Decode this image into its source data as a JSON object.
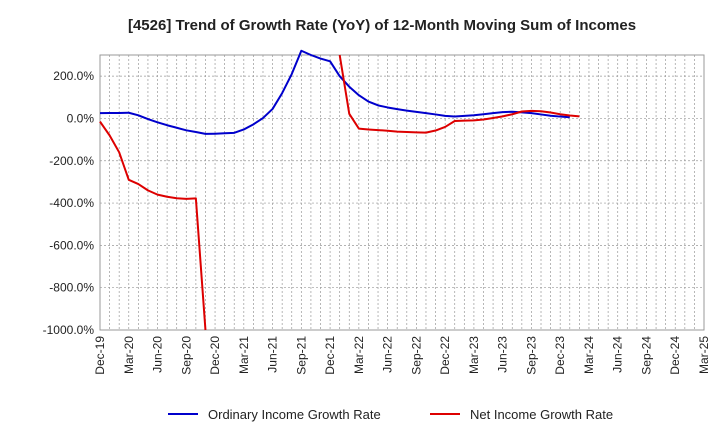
{
  "chart_data": {
    "type": "line",
    "title": "[4526]  Trend of Growth Rate (YoY) of 12-Month Moving Sum of Incomes",
    "xlabel": "",
    "ylabel": "",
    "x_tick_labels": [
      "Dec-19",
      "Mar-20",
      "Jun-20",
      "Sep-20",
      "Dec-20",
      "Mar-21",
      "Jun-21",
      "Sep-21",
      "Dec-21",
      "Mar-22",
      "Jun-22",
      "Sep-22",
      "Dec-22",
      "Mar-23",
      "Jun-23",
      "Sep-23",
      "Dec-23",
      "Mar-24",
      "Jun-24",
      "Sep-24",
      "Dec-24",
      "Mar-25"
    ],
    "y_tick_labels": [
      "200.0%",
      "0.0%",
      "-200.0%",
      "-400.0%",
      "-600.0%",
      "-800.0%",
      "-1000.0%"
    ],
    "y_ticks": [
      200,
      0,
      -200,
      -400,
      -600,
      -800,
      -1000
    ],
    "ylim": [
      -1000,
      300
    ],
    "grid": true,
    "legend_position": "bottom",
    "series": [
      {
        "name": "Ordinary Income Growth Rate",
        "color": "#0000cc",
        "values": [
          [
            0,
            25
          ],
          [
            1,
            26
          ],
          [
            2,
            26
          ],
          [
            3,
            27
          ],
          [
            4,
            15
          ],
          [
            5,
            -3
          ],
          [
            6,
            -18
          ],
          [
            7,
            -32
          ],
          [
            8,
            -44
          ],
          [
            9,
            -56
          ],
          [
            10,
            -64
          ],
          [
            11,
            -73
          ],
          [
            12,
            -72
          ],
          [
            13,
            -70
          ],
          [
            14,
            -68
          ],
          [
            15,
            -52
          ],
          [
            16,
            -28
          ],
          [
            17,
            2
          ],
          [
            18,
            45
          ],
          [
            19,
            120
          ],
          [
            20,
            210
          ],
          [
            21,
            320
          ],
          [
            22,
            300
          ],
          [
            23,
            283
          ],
          [
            24,
            270
          ],
          [
            25,
            200
          ],
          [
            26,
            150
          ],
          [
            27,
            110
          ],
          [
            28,
            80
          ],
          [
            29,
            62
          ],
          [
            30,
            52
          ],
          [
            31,
            44
          ],
          [
            32,
            37
          ],
          [
            33,
            31
          ],
          [
            34,
            25
          ],
          [
            35,
            19
          ],
          [
            36,
            12
          ],
          [
            37,
            9
          ],
          [
            38,
            12
          ],
          [
            39,
            15
          ],
          [
            40,
            20
          ],
          [
            41,
            25
          ],
          [
            42,
            30
          ],
          [
            43,
            32
          ],
          [
            44,
            29
          ],
          [
            45,
            25
          ],
          [
            46,
            19
          ],
          [
            47,
            13
          ],
          [
            48,
            9
          ],
          [
            49,
            6
          ]
        ]
      },
      {
        "name": "Net Income Growth Rate",
        "color": "#dd0000",
        "segments": [
          [
            [
              0,
              -15
            ],
            [
              1,
              -80
            ],
            [
              2,
              -160
            ],
            [
              3,
              -290
            ],
            [
              4,
              -310
            ],
            [
              5,
              -340
            ],
            [
              6,
              -360
            ],
            [
              7,
              -370
            ],
            [
              8,
              -377
            ],
            [
              9,
              -380
            ],
            [
              10,
              -378
            ],
            [
              11,
              -1000
            ]
          ],
          [
            [
              25,
              300
            ],
            [
              26,
              22
            ],
            [
              27,
              -48
            ],
            [
              28,
              -52
            ],
            [
              29,
              -55
            ],
            [
              30,
              -58
            ],
            [
              31,
              -62
            ],
            [
              32,
              -64
            ],
            [
              33,
              -66
            ],
            [
              34,
              -67
            ],
            [
              35,
              -57
            ],
            [
              36,
              -40
            ],
            [
              37,
              -12
            ],
            [
              38,
              -10
            ],
            [
              39,
              -9
            ],
            [
              40,
              -5
            ],
            [
              41,
              2
            ],
            [
              42,
              10
            ],
            [
              43,
              20
            ],
            [
              44,
              33
            ],
            [
              45,
              36
            ],
            [
              46,
              34
            ],
            [
              47,
              28
            ],
            [
              48,
              20
            ],
            [
              49,
              14
            ],
            [
              50,
              10
            ]
          ]
        ]
      }
    ]
  }
}
